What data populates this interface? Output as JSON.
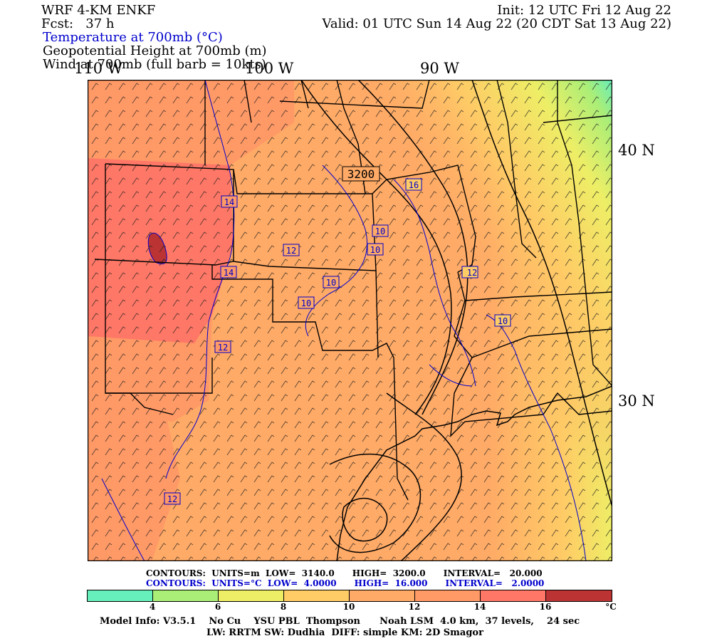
{
  "header": {
    "model": "WRF 4-KM ENKF",
    "fcst": "Fcst:   37 h",
    "init": "Init: 12 UTC Fri 12 Aug 22",
    "valid": "Valid: 01 UTC Sun 14 Aug 22 (20 CDT Sat 13 Aug 22)",
    "field1": "Temperature at 700mb (°C)",
    "field2": "Geopotential Height at 700mb (m)",
    "field3": "Wind at 700mb (full barb = 10kts)"
  },
  "axes": {
    "lon_labels": [
      "110 W",
      "100 W",
      "90 W"
    ],
    "lat_labels": [
      "40 N",
      "30 N"
    ]
  },
  "map": {
    "height_contour_label": "3200",
    "temperature_contour_labels": [
      "16",
      "14",
      "14",
      "12",
      "12",
      "12",
      "12",
      "10",
      "10",
      "10",
      "10",
      "10",
      "10"
    ]
  },
  "stats": {
    "height_line": "CONTOURS:  UNITS=m  LOW=  3140.0      HIGH=  3200.0      INTERVAL=   20.000",
    "temp_line": "CONTOURS:  UNITS=°C  LOW=  4.0000      HIGH=  16.000      INTERVAL=   2.0000"
  },
  "colorbar": {
    "colors": [
      "#66eebb",
      "#aaee77",
      "#eeee66",
      "#ffcc66",
      "#ffaa66",
      "#ff9966",
      "#ff7766",
      "#bb3333"
    ],
    "ticks": [
      "4",
      "6",
      "8",
      "10",
      "12",
      "14",
      "16"
    ],
    "unit": "°C"
  },
  "model_info": {
    "line1": "Model Info: V3.5.1    No Cu    YSU PBL  Thompson      Noah LSM  4.0 km,  37 levels,    24 sec",
    "line2": "LW: RRTM SW: Dudhia  DIFF: simple KM: 2D Smagor"
  }
}
